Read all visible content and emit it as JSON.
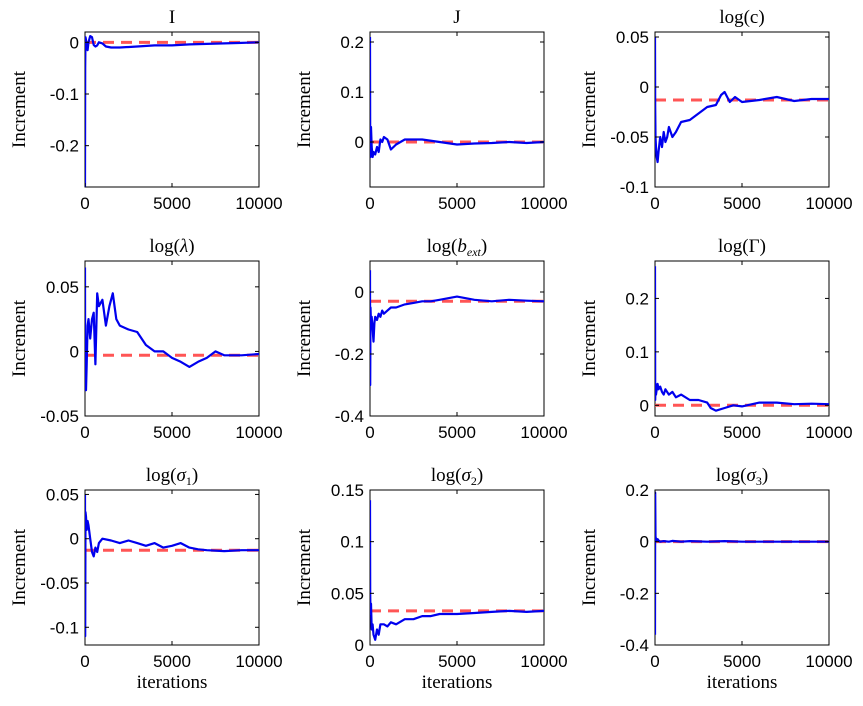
{
  "figure": {
    "shared_ylabel": "Increment",
    "shared_xlabel": "iterations",
    "colors": {
      "trace": "#0000ee",
      "reference": "#ff5555",
      "axes": "#000000"
    }
  },
  "chart_data": [
    {
      "type": "line",
      "title": "I",
      "title_math": null,
      "ylabel": "Increment",
      "xlabel": "",
      "xlim": [
        0,
        10000
      ],
      "ylim": [
        -0.28,
        0.02
      ],
      "xticks": [
        0,
        5000,
        10000
      ],
      "xtick_labels": [
        "0",
        "5000",
        "10000"
      ],
      "yticks": [
        -0.2,
        -0.1,
        0
      ],
      "ytick_labels": [
        "-0.2",
        "-0.1",
        "0"
      ],
      "reference": 0.0,
      "series": [
        {
          "name": "trace",
          "x": [
            0,
            10,
            30,
            60,
            100,
            150,
            200,
            300,
            400,
            500,
            600,
            700,
            800,
            1000,
            1200,
            1500,
            2000,
            3000,
            4000,
            5000,
            6000,
            7000,
            8000,
            9000,
            10000
          ],
          "y": [
            -0.28,
            -0.05,
            0.01,
            0.005,
            -0.01,
            -0.015,
            0.0,
            0.012,
            0.01,
            -0.005,
            -0.008,
            -0.006,
            0.0,
            -0.002,
            -0.008,
            -0.01,
            -0.01,
            -0.008,
            -0.006,
            -0.006,
            -0.004,
            -0.003,
            -0.002,
            -0.001,
            0.0
          ]
        }
      ]
    },
    {
      "type": "line",
      "title": "J",
      "title_math": null,
      "ylabel": "Increment",
      "xlabel": "",
      "xlim": [
        0,
        10000
      ],
      "ylim": [
        -0.09,
        0.22
      ],
      "xticks": [
        0,
        5000,
        10000
      ],
      "xtick_labels": [
        "0",
        "5000",
        "10000"
      ],
      "yticks": [
        0,
        0.1,
        0.2
      ],
      "ytick_labels": [
        "0",
        "0.1",
        "0.2"
      ],
      "reference": 0.0,
      "series": [
        {
          "name": "trace",
          "x": [
            0,
            10,
            30,
            60,
            100,
            150,
            200,
            300,
            400,
            500,
            600,
            700,
            800,
            1000,
            1200,
            1500,
            2000,
            3000,
            4000,
            5000,
            6000,
            7000,
            8000,
            9000,
            10000
          ],
          "y": [
            0.21,
            0.0,
            -0.03,
            0.03,
            -0.01,
            -0.03,
            -0.02,
            -0.025,
            -0.01,
            -0.02,
            0.005,
            0.0,
            0.01,
            0.005,
            -0.015,
            -0.005,
            0.005,
            0.005,
            0.0,
            -0.005,
            -0.003,
            -0.002,
            0.0,
            -0.002,
            0.0
          ]
        }
      ]
    },
    {
      "type": "line",
      "title": "log(c)",
      "title_math": null,
      "ylabel": "Increment",
      "xlabel": "",
      "xlim": [
        0,
        10000
      ],
      "ylim": [
        -0.1,
        0.055
      ],
      "xticks": [
        0,
        5000,
        10000
      ],
      "xtick_labels": [
        "0",
        "5000",
        "10000"
      ],
      "yticks": [
        -0.1,
        -0.05,
        0,
        0.05
      ],
      "ytick_labels": [
        "-0.1",
        "-0.05",
        "0",
        "0.05"
      ],
      "reference": -0.013,
      "series": [
        {
          "name": "trace",
          "x": [
            0,
            10,
            30,
            60,
            100,
            150,
            200,
            300,
            400,
            500,
            600,
            700,
            800,
            1000,
            1200,
            1500,
            2000,
            3000,
            3500,
            3800,
            4000,
            4300,
            4600,
            5000,
            6000,
            7000,
            8000,
            9000,
            10000
          ],
          "y": [
            0.05,
            -0.02,
            -0.05,
            -0.06,
            -0.07,
            -0.075,
            -0.065,
            -0.05,
            -0.06,
            -0.045,
            -0.055,
            -0.05,
            -0.04,
            -0.05,
            -0.045,
            -0.035,
            -0.033,
            -0.02,
            -0.018,
            -0.008,
            -0.005,
            -0.015,
            -0.01,
            -0.015,
            -0.013,
            -0.01,
            -0.014,
            -0.012,
            -0.012
          ]
        }
      ]
    },
    {
      "type": "line",
      "title": "log(λ)",
      "title_math": "lambda",
      "ylabel": "Increment",
      "xlabel": "",
      "xlim": [
        0,
        10000
      ],
      "ylim": [
        -0.05,
        0.07
      ],
      "xticks": [
        0,
        5000,
        10000
      ],
      "xtick_labels": [
        "0",
        "5000",
        "10000"
      ],
      "yticks": [
        -0.05,
        0,
        0.05
      ],
      "ytick_labels": [
        "-0.05",
        "0",
        "0.05"
      ],
      "reference": -0.003,
      "series": [
        {
          "name": "trace",
          "x": [
            0,
            10,
            30,
            60,
            100,
            150,
            200,
            300,
            400,
            500,
            600,
            700,
            800,
            1000,
            1200,
            1400,
            1600,
            1800,
            2000,
            2500,
            3000,
            3500,
            4000,
            4500,
            5000,
            5500,
            6000,
            6500,
            7000,
            7500,
            8000,
            9000,
            10000
          ],
          "y": [
            0.065,
            -0.03,
            -0.02,
            -0.03,
            -0.01,
            0.02,
            0.025,
            0.01,
            0.025,
            0.03,
            -0.01,
            0.045,
            0.035,
            0.04,
            0.02,
            0.035,
            0.045,
            0.025,
            0.02,
            0.017,
            0.015,
            0.005,
            0.0,
            0.0,
            -0.005,
            -0.008,
            -0.012,
            -0.008,
            -0.005,
            0.0,
            -0.003,
            -0.003,
            -0.002
          ]
        }
      ]
    },
    {
      "type": "line",
      "title": "log(b_ext)",
      "title_math": "b_ext",
      "ylabel": "Increment",
      "xlabel": "",
      "xlim": [
        0,
        10000
      ],
      "ylim": [
        -0.4,
        0.1
      ],
      "xticks": [
        0,
        5000,
        10000
      ],
      "xtick_labels": [
        "0",
        "5000",
        "10000"
      ],
      "yticks": [
        -0.4,
        -0.2,
        0
      ],
      "ytick_labels": [
        "-0.4",
        "-0.2",
        "0"
      ],
      "reference": -0.03,
      "series": [
        {
          "name": "trace",
          "x": [
            0,
            10,
            30,
            60,
            100,
            150,
            200,
            250,
            300,
            400,
            500,
            600,
            700,
            800,
            1000,
            1200,
            1500,
            2000,
            2500,
            3000,
            3500,
            4000,
            4500,
            5000,
            5500,
            6000,
            7000,
            8000,
            9000,
            10000
          ],
          "y": [
            0.07,
            -0.3,
            -0.05,
            -0.1,
            -0.08,
            -0.12,
            -0.16,
            -0.1,
            -0.08,
            -0.09,
            -0.07,
            -0.08,
            -0.06,
            -0.07,
            -0.06,
            -0.05,
            -0.05,
            -0.04,
            -0.035,
            -0.03,
            -0.03,
            -0.025,
            -0.02,
            -0.015,
            -0.02,
            -0.025,
            -0.03,
            -0.025,
            -0.028,
            -0.03
          ]
        }
      ]
    },
    {
      "type": "line",
      "title": "log(Γ)",
      "title_math": "Gamma",
      "ylabel": "Increment",
      "xlabel": "",
      "xlim": [
        0,
        10000
      ],
      "ylim": [
        -0.02,
        0.27
      ],
      "xticks": [
        0,
        5000,
        10000
      ],
      "xtick_labels": [
        "0",
        "5000",
        "10000"
      ],
      "yticks": [
        0,
        0.1,
        0.2
      ],
      "ytick_labels": [
        "0",
        "0.1",
        "0.2"
      ],
      "reference": 0.0,
      "series": [
        {
          "name": "trace",
          "x": [
            0,
            10,
            30,
            60,
            100,
            150,
            200,
            300,
            400,
            500,
            600,
            800,
            1000,
            1200,
            1500,
            2000,
            2500,
            3000,
            3200,
            3500,
            4000,
            4500,
            5000,
            6000,
            7000,
            8000,
            9000,
            10000
          ],
          "y": [
            0.26,
            0.01,
            0.04,
            0.02,
            0.03,
            0.04,
            0.03,
            0.035,
            0.025,
            0.02,
            0.03,
            0.02,
            0.025,
            0.015,
            0.02,
            0.01,
            0.01,
            0.005,
            -0.005,
            -0.01,
            -0.005,
            0.0,
            -0.002,
            0.005,
            0.005,
            0.002,
            0.003,
            0.002
          ]
        }
      ]
    },
    {
      "type": "line",
      "title": "log(σ1)",
      "title_math": "sigma_1",
      "ylabel": "Increment",
      "xlabel": "iterations",
      "xlim": [
        0,
        10000
      ],
      "ylim": [
        -0.12,
        0.055
      ],
      "xticks": [
        0,
        5000,
        10000
      ],
      "xtick_labels": [
        "0",
        "5000",
        "10000"
      ],
      "yticks": [
        -0.1,
        -0.05,
        0,
        0.05
      ],
      "ytick_labels": [
        "-0.1",
        "-0.05",
        "0",
        "0.05"
      ],
      "reference": -0.013,
      "series": [
        {
          "name": "trace",
          "x": [
            0,
            10,
            30,
            60,
            100,
            150,
            200,
            300,
            400,
            500,
            600,
            700,
            800,
            1000,
            1500,
            2000,
            2500,
            3000,
            3500,
            4000,
            4500,
            5000,
            5500,
            6000,
            6500,
            7000,
            8000,
            9000,
            10000
          ],
          "y": [
            0.05,
            -0.11,
            0.03,
            0.025,
            0.01,
            0.02,
            0.015,
            0.0,
            -0.015,
            -0.02,
            -0.01,
            -0.015,
            -0.005,
            0.0,
            -0.002,
            -0.005,
            -0.002,
            -0.005,
            -0.008,
            -0.005,
            -0.01,
            -0.008,
            -0.005,
            -0.01,
            -0.012,
            -0.013,
            -0.014,
            -0.013,
            -0.013
          ]
        }
      ]
    },
    {
      "type": "line",
      "title": "log(σ2)",
      "title_math": "sigma_2",
      "ylabel": "Increment",
      "xlabel": "iterations",
      "xlim": [
        0,
        10000
      ],
      "ylim": [
        0,
        0.15
      ],
      "xticks": [
        0,
        5000,
        10000
      ],
      "xtick_labels": [
        "0",
        "5000",
        "10000"
      ],
      "yticks": [
        0,
        0.05,
        0.1,
        0.15
      ],
      "ytick_labels": [
        "0",
        "0.05",
        "0.1",
        "0.15"
      ],
      "reference": 0.033,
      "series": [
        {
          "name": "trace",
          "x": [
            0,
            10,
            30,
            60,
            100,
            150,
            200,
            300,
            400,
            500,
            600,
            800,
            1000,
            1200,
            1500,
            2000,
            2500,
            3000,
            3500,
            4000,
            5000,
            6000,
            7000,
            8000,
            9000,
            10000
          ],
          "y": [
            0.14,
            0.05,
            0.03,
            0.04,
            0.015,
            0.02,
            0.01,
            0.005,
            0.015,
            0.01,
            0.02,
            0.02,
            0.018,
            0.022,
            0.02,
            0.025,
            0.025,
            0.028,
            0.028,
            0.03,
            0.03,
            0.031,
            0.032,
            0.033,
            0.032,
            0.033
          ]
        }
      ]
    },
    {
      "type": "line",
      "title": "log(σ3)",
      "title_math": "sigma_3",
      "ylabel": "Increment",
      "xlabel": "iterations",
      "xlim": [
        0,
        10000
      ],
      "ylim": [
        -0.4,
        0.2
      ],
      "xticks": [
        0,
        5000,
        10000
      ],
      "xtick_labels": [
        "0",
        "5000",
        "10000"
      ],
      "yticks": [
        -0.4,
        -0.2,
        0,
        0.2
      ],
      "ytick_labels": [
        "-0.4",
        "-0.2",
        "0",
        "0.2"
      ],
      "reference": 0.0,
      "series": [
        {
          "name": "trace",
          "x": [
            0,
            10,
            30,
            60,
            100,
            150,
            200,
            300,
            500,
            800,
            1000,
            1500,
            2000,
            3000,
            4000,
            5000,
            6000,
            7000,
            8000,
            9000,
            10000
          ],
          "y": [
            -0.36,
            0.19,
            0.02,
            0.01,
            0.005,
            0.01,
            0.005,
            0.0,
            0.002,
            0.0,
            0.003,
            0.0,
            0.002,
            0.0,
            0.002,
            0.0,
            0.0,
            0.0,
            0.0,
            0.0,
            0.0
          ]
        }
      ]
    }
  ]
}
